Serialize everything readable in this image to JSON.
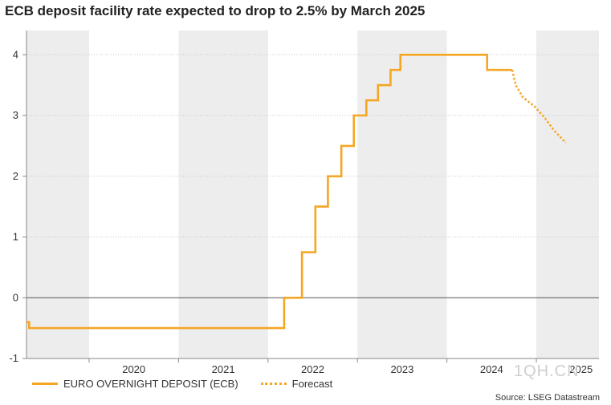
{
  "chart_data": {
    "type": "line",
    "title": "ECB deposit facility rate expected to drop to 2.5% by March 2025",
    "source": "Source: LSEG Datastream",
    "xlabel": "",
    "ylabel": "",
    "xlim": [
      2019.3,
      2025.7
    ],
    "ylim": [
      -1,
      4.4
    ],
    "yticks": [
      -1,
      0,
      1,
      2,
      3,
      4
    ],
    "xticks": [
      "2020",
      "2021",
      "2022",
      "2023",
      "2024",
      "2025"
    ],
    "shaded_years": [
      2019,
      2021,
      2023,
      2025
    ],
    "grid": true,
    "legend_position": "bottom-left",
    "series": [
      {
        "name": "EURO OVERNIGHT DEPOSIT (ECB)",
        "style": "solid",
        "color": "#f5a623",
        "points": [
          [
            2019.3,
            -0.4
          ],
          [
            2019.33,
            -0.4
          ],
          [
            2019.33,
            -0.5
          ],
          [
            2022.18,
            -0.5
          ],
          [
            2022.18,
            0.0
          ],
          [
            2022.38,
            0.0
          ],
          [
            2022.38,
            0.75
          ],
          [
            2022.53,
            0.75
          ],
          [
            2022.53,
            1.5
          ],
          [
            2022.67,
            1.5
          ],
          [
            2022.67,
            2.0
          ],
          [
            2022.82,
            2.0
          ],
          [
            2022.82,
            2.5
          ],
          [
            2022.96,
            2.5
          ],
          [
            2022.96,
            3.0
          ],
          [
            2023.1,
            3.0
          ],
          [
            2023.1,
            3.25
          ],
          [
            2023.23,
            3.25
          ],
          [
            2023.23,
            3.5
          ],
          [
            2023.37,
            3.5
          ],
          [
            2023.37,
            3.75
          ],
          [
            2023.48,
            3.75
          ],
          [
            2023.48,
            4.0
          ],
          [
            2024.45,
            4.0
          ],
          [
            2024.45,
            3.75
          ],
          [
            2024.73,
            3.75
          ]
        ]
      },
      {
        "name": "Forecast",
        "style": "dotted",
        "color": "#f5a623",
        "points": [
          [
            2024.73,
            3.75
          ],
          [
            2024.77,
            3.5
          ],
          [
            2024.85,
            3.3
          ],
          [
            2024.98,
            3.15
          ],
          [
            2025.1,
            2.95
          ],
          [
            2025.2,
            2.75
          ],
          [
            2025.33,
            2.55
          ]
        ]
      }
    ]
  },
  "watermark": "1QH.CN"
}
